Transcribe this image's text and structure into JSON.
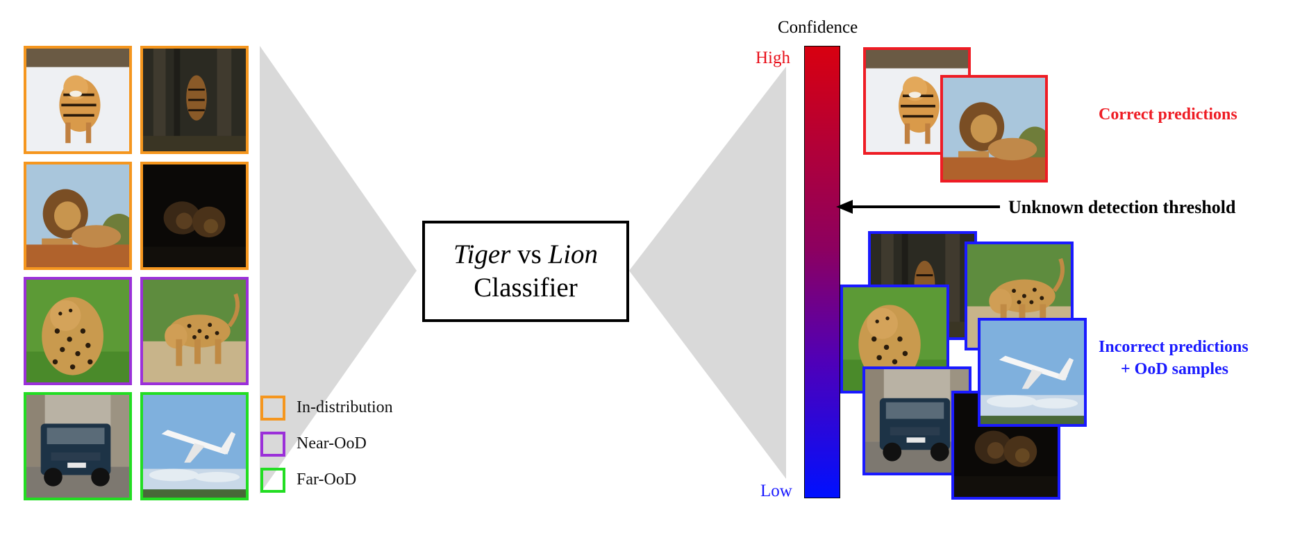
{
  "legend": {
    "items": [
      {
        "label": "In-distribution",
        "color": "#f5961e"
      },
      {
        "label": "Near-OoD",
        "color": "#9b30d9"
      },
      {
        "label": "Far-OoD",
        "color": "#22dd22"
      }
    ]
  },
  "classifier": {
    "class_a": "Tiger",
    "vs": "vs",
    "class_b": "Lion",
    "line2": "Classifier"
  },
  "confidence": {
    "title": "Confidence",
    "high": "High",
    "low": "Low"
  },
  "threshold": {
    "label": "Unknown detection threshold"
  },
  "groups": {
    "correct": {
      "label": "Correct predictions",
      "color": "#ee1c24"
    },
    "incorrect": {
      "line1": "Incorrect predictions",
      "line2": "+ OoD samples",
      "color": "#1a1aff"
    }
  },
  "images": {
    "tiger": "tiger-image",
    "tiger_forest": "tiger-in-forest-image",
    "lion": "lion-image",
    "lion_dark": "dark-lions-image",
    "leopard": "leopard-image",
    "leopard_walking": "walking-leopard-image",
    "car": "suv-car-image",
    "airplane": "airplane-image"
  }
}
